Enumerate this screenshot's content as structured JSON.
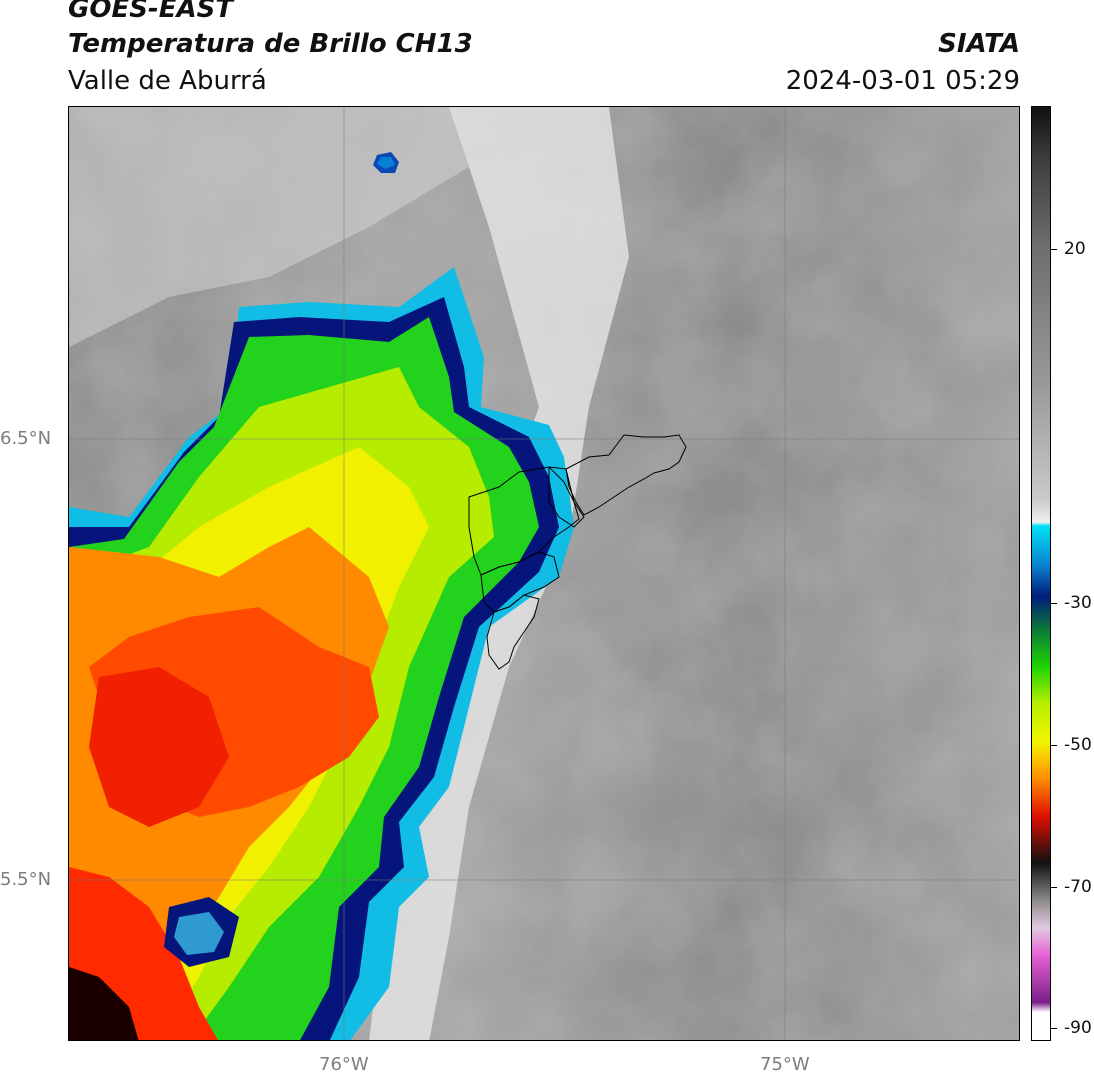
{
  "header": {
    "satellite": "GOES-EAST",
    "product": "Temperatura de Brillo CH13",
    "region": "Valle de Aburrá",
    "organization": "SIATA",
    "datetime": "2024-03-01 05:29"
  },
  "axes": {
    "lat_labels": [
      "6.5°N",
      "5.5°N"
    ],
    "lon_labels": [
      "76°W",
      "75°W"
    ]
  },
  "colorbar": {
    "tick_labels": [
      "20",
      "-30",
      "-50",
      "-70",
      "-90"
    ],
    "colors": {
      "warm_gray": "#9a9a9a",
      "light_gray": "#e8e8e8",
      "cyan": "#00d4f0",
      "dark_blue": "#001c7a",
      "green": "#1fd400",
      "yellow": "#f2f500",
      "orange": "#ff8c00",
      "red": "#e01000",
      "black": "#111111",
      "magenta": "#cf3fc6",
      "purple": "#7a1f8a"
    }
  }
}
